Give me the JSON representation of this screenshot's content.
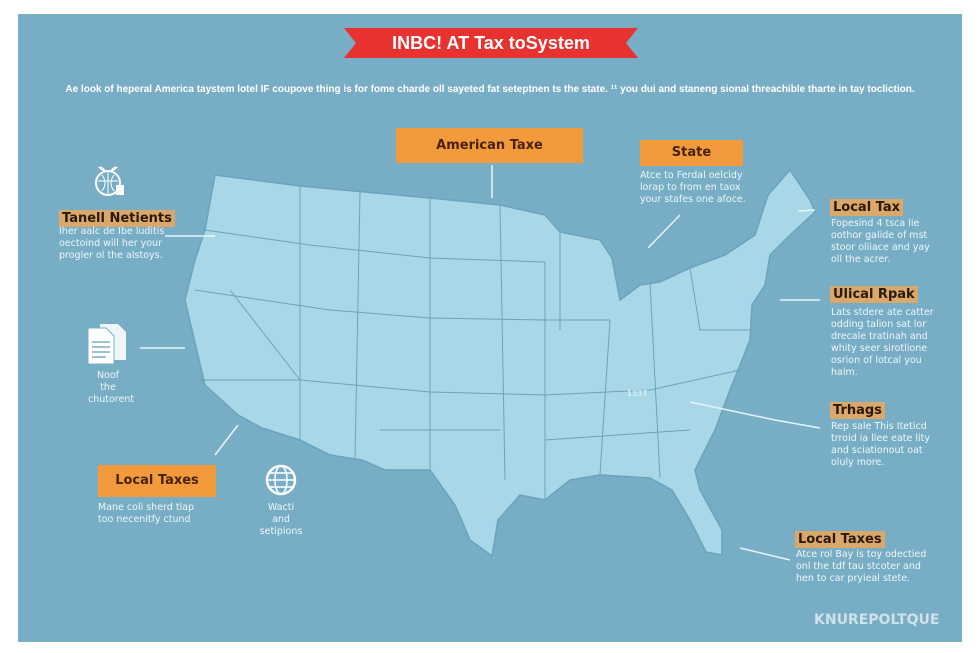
{
  "banner": {
    "title": "INBC! AT Tax toSystem",
    "color": "#e8322f"
  },
  "subtitle": "Ae look of heperal America taystem lotel IF coupove thing is for fome charde oll sayeted fat seteptnen ts the state. ¹¹ you dui and staneng sional threachible tharte in tay tocliction.",
  "colors": {
    "background": "#78aec5",
    "map": "#a8d8e8",
    "orange": "#f29a3c"
  },
  "map": {
    "state_label": "1337"
  },
  "callouts": {
    "american_taxes": {
      "title": "American Taxe"
    },
    "state": {
      "title": "State",
      "text": [
        "Atce to Ferdal oelcidy",
        "lorap to from en taox",
        "your stafes one afoce."
      ]
    },
    "tanell": {
      "icon": "globe-document-icon",
      "title": "Tanell Netients",
      "text": [
        "Iher aalc de Ibe luditis",
        "oectoind will her your",
        "progler ol the alstoys."
      ]
    },
    "documents": {
      "icon": "documents-icon",
      "text": [
        "Noof the",
        "chutorent"
      ]
    },
    "local_taxes_left": {
      "title": "Local Taxes",
      "text": [
        "Mane coli sherd tlap",
        "too necenitfy ctund"
      ]
    },
    "globe": {
      "icon": "globe-icon",
      "text": [
        "Wacti and",
        "setipions"
      ]
    },
    "local_tax": {
      "title": "Local Tax",
      "text": [
        "Fopesind 4 tsca lie",
        "oothor galide of mst",
        "stoor olliace and yay",
        "oll the acrer."
      ]
    },
    "ulical": {
      "title": "Ulical Rpak",
      "text": [
        "Lats stdere ate catter",
        "odding talion sat lor",
        "drecale tratinah and",
        "whity seer sirotlione",
        "osrion of lotcal you",
        "halm."
      ]
    },
    "trhags": {
      "title": "Trhags",
      "text": [
        "Rep sale This Iteticd",
        "trroid ia llee eate lity",
        "and sciationout oat",
        "oluly more."
      ]
    },
    "local_taxes_right": {
      "title": "Local Taxes",
      "text": [
        "Atce rol Bay is toy odectied",
        "onl the tdf tau stcoter and",
        "hen to car pryieal stete."
      ]
    }
  },
  "watermark": "KNUREPOLTQUE"
}
